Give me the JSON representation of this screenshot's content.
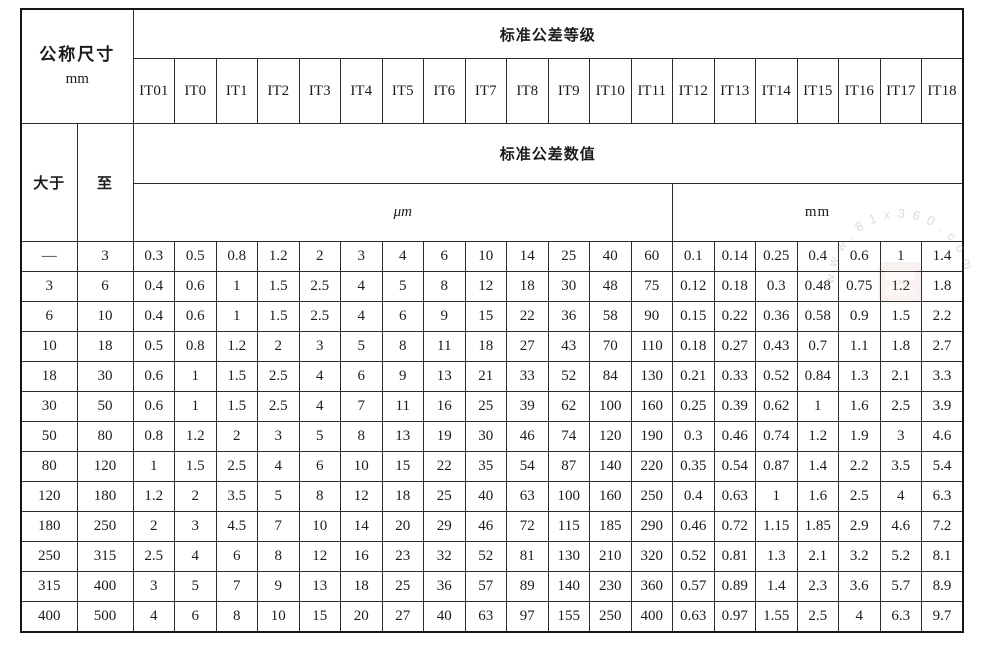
{
  "table": {
    "nominal_size_label": "公称尺寸",
    "nominal_size_unit": "mm",
    "title_grades": "标准公差等级",
    "title_values": "标准公差数值",
    "col_over": "大于",
    "col_to": "至",
    "unit_micro": "μm",
    "unit_milli": "mm",
    "grades": [
      "IT01",
      "IT0",
      "IT1",
      "IT2",
      "IT3",
      "IT4",
      "IT5",
      "IT6",
      "IT7",
      "IT8",
      "IT9",
      "IT10",
      "IT11",
      "IT12",
      "IT13",
      "IT14",
      "IT15",
      "IT16",
      "IT17",
      "IT18"
    ],
    "micro_span_grades": 13,
    "milli_span_grades": 7,
    "rows": [
      {
        "over": "—",
        "to": "3",
        "values": [
          "0.3",
          "0.5",
          "0.8",
          "1.2",
          "2",
          "3",
          "4",
          "6",
          "10",
          "14",
          "25",
          "40",
          "60",
          "0.1",
          "0.14",
          "0.25",
          "0.4",
          "0.6",
          "1",
          "1.4"
        ]
      },
      {
        "over": "3",
        "to": "6",
        "values": [
          "0.4",
          "0.6",
          "1",
          "1.5",
          "2.5",
          "4",
          "5",
          "8",
          "12",
          "18",
          "30",
          "48",
          "75",
          "0.12",
          "0.18",
          "0.3",
          "0.48",
          "0.75",
          "1.2",
          "1.8"
        ]
      },
      {
        "over": "6",
        "to": "10",
        "values": [
          "0.4",
          "0.6",
          "1",
          "1.5",
          "2.5",
          "4",
          "6",
          "9",
          "15",
          "22",
          "36",
          "58",
          "90",
          "0.15",
          "0.22",
          "0.36",
          "0.58",
          "0.9",
          "1.5",
          "2.2"
        ]
      },
      {
        "over": "10",
        "to": "18",
        "values": [
          "0.5",
          "0.8",
          "1.2",
          "2",
          "3",
          "5",
          "8",
          "11",
          "18",
          "27",
          "43",
          "70",
          "110",
          "0.18",
          "0.27",
          "0.43",
          "0.7",
          "1.1",
          "1.8",
          "2.7"
        ]
      },
      {
        "over": "18",
        "to": "30",
        "values": [
          "0.6",
          "1",
          "1.5",
          "2.5",
          "4",
          "6",
          "9",
          "13",
          "21",
          "33",
          "52",
          "84",
          "130",
          "0.21",
          "0.33",
          "0.52",
          "0.84",
          "1.3",
          "2.1",
          "3.3"
        ]
      },
      {
        "over": "30",
        "to": "50",
        "values": [
          "0.6",
          "1",
          "1.5",
          "2.5",
          "4",
          "7",
          "11",
          "16",
          "25",
          "39",
          "62",
          "100",
          "160",
          "0.25",
          "0.39",
          "0.62",
          "1",
          "1.6",
          "2.5",
          "3.9"
        ]
      },
      {
        "over": "50",
        "to": "80",
        "values": [
          "0.8",
          "1.2",
          "2",
          "3",
          "5",
          "8",
          "13",
          "19",
          "30",
          "46",
          "74",
          "120",
          "190",
          "0.3",
          "0.46",
          "0.74",
          "1.2",
          "1.9",
          "3",
          "4.6"
        ]
      },
      {
        "over": "80",
        "to": "120",
        "values": [
          "1",
          "1.5",
          "2.5",
          "4",
          "6",
          "10",
          "15",
          "22",
          "35",
          "54",
          "87",
          "140",
          "220",
          "0.35",
          "0.54",
          "0.87",
          "1.4",
          "2.2",
          "3.5",
          "5.4"
        ]
      },
      {
        "over": "120",
        "to": "180",
        "values": [
          "1.2",
          "2",
          "3.5",
          "5",
          "8",
          "12",
          "18",
          "25",
          "40",
          "63",
          "100",
          "160",
          "250",
          "0.4",
          "0.63",
          "1",
          "1.6",
          "2.5",
          "4",
          "6.3"
        ]
      },
      {
        "over": "180",
        "to": "250",
        "values": [
          "2",
          "3",
          "4.5",
          "7",
          "10",
          "14",
          "20",
          "29",
          "46",
          "72",
          "115",
          "185",
          "290",
          "0.46",
          "0.72",
          "1.15",
          "1.85",
          "2.9",
          "4.6",
          "7.2"
        ]
      },
      {
        "over": "250",
        "to": "315",
        "values": [
          "2.5",
          "4",
          "6",
          "8",
          "12",
          "16",
          "23",
          "32",
          "52",
          "81",
          "130",
          "210",
          "320",
          "0.52",
          "0.81",
          "1.3",
          "2.1",
          "3.2",
          "5.2",
          "8.1"
        ]
      },
      {
        "over": "315",
        "to": "400",
        "values": [
          "3",
          "5",
          "7",
          "9",
          "13",
          "18",
          "25",
          "36",
          "57",
          "89",
          "140",
          "230",
          "360",
          "0.57",
          "0.89",
          "1.4",
          "2.3",
          "3.6",
          "5.7",
          "8.9"
        ]
      },
      {
        "over": "400",
        "to": "500",
        "values": [
          "4",
          "6",
          "8",
          "10",
          "15",
          "20",
          "27",
          "40",
          "63",
          "97",
          "155",
          "250",
          "400",
          "0.63",
          "0.97",
          "1.55",
          "2.5",
          "4",
          "6.3",
          "9.7"
        ]
      }
    ]
  },
  "watermark": {
    "circle_text": "www.81x360.com",
    "text_color": "#9a9186",
    "emblem_color": "#b85a40"
  }
}
